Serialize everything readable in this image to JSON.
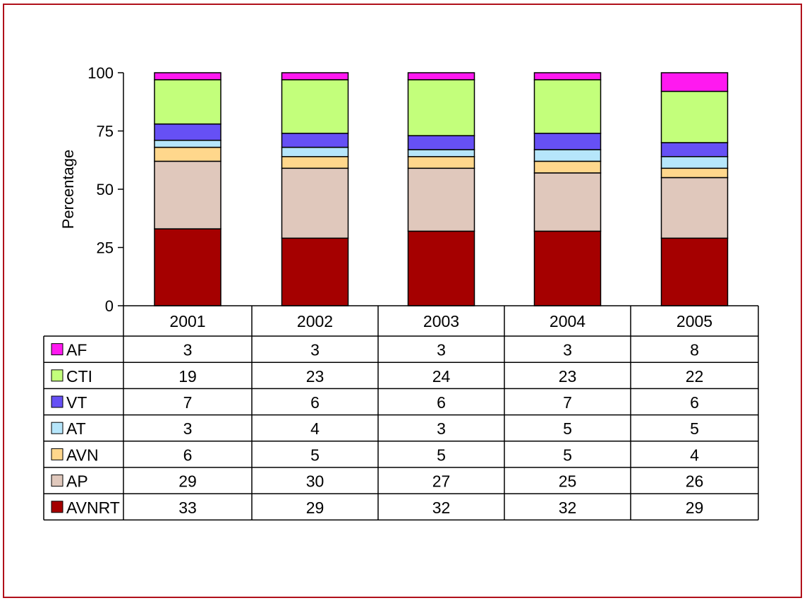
{
  "chart_data": {
    "type": "bar",
    "stacked": true,
    "title": "",
    "xlabel": "",
    "ylabel": "Percentage",
    "ylim": [
      0,
      100
    ],
    "yticks": [
      0,
      25,
      50,
      75,
      100
    ],
    "categories": [
      "2001",
      "2002",
      "2003",
      "2004",
      "2005"
    ],
    "legend_placement": "table-left",
    "grid": false,
    "series": [
      {
        "name": "AVNRT",
        "color": "#a50000",
        "values": [
          33,
          29,
          32,
          32,
          29
        ]
      },
      {
        "name": "AP",
        "color": "#e0c8bc",
        "values": [
          29,
          30,
          27,
          25,
          26
        ]
      },
      {
        "name": "AVN",
        "color": "#ffd78c",
        "values": [
          6,
          5,
          5,
          5,
          4
        ]
      },
      {
        "name": "AT",
        "color": "#b6e6fb",
        "values": [
          3,
          4,
          3,
          5,
          5
        ]
      },
      {
        "name": "VT",
        "color": "#6650f5",
        "values": [
          7,
          6,
          6,
          7,
          6
        ]
      },
      {
        "name": "CTI",
        "color": "#c3ff7b",
        "values": [
          19,
          23,
          24,
          23,
          22
        ]
      },
      {
        "name": "AF",
        "color": "#ff19f0",
        "values": [
          3,
          3,
          3,
          3,
          8
        ]
      }
    ],
    "table_row_order": [
      "AF",
      "CTI",
      "VT",
      "AT",
      "AVN",
      "AP",
      "AVNRT"
    ]
  }
}
